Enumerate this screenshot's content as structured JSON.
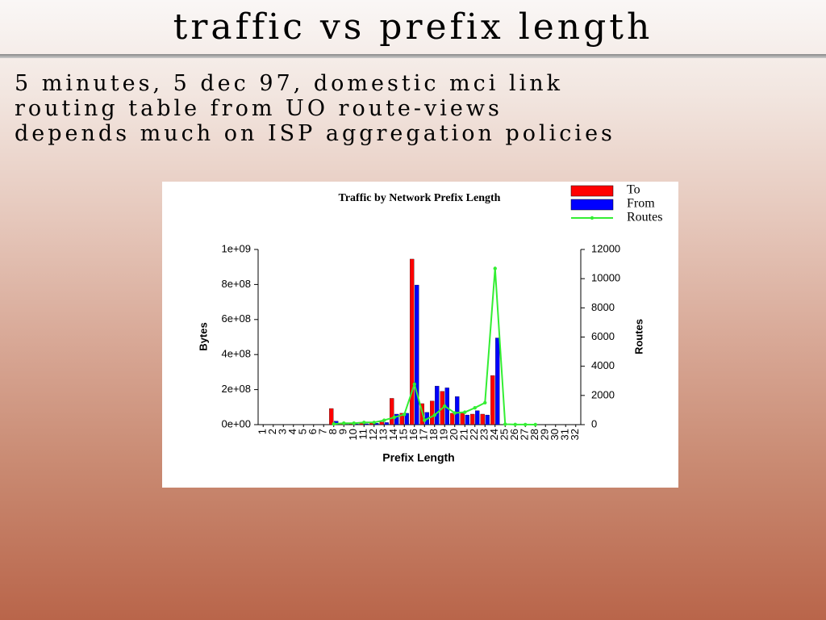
{
  "slide": {
    "title": "traffic vs prefix length",
    "lines": [
      "5 minutes, 5 dec 97, domestic mci link",
      "routing table from UO route-views",
      "depends much on ISP aggregation policies"
    ]
  },
  "chart_data": {
    "type": "bar",
    "title": "Traffic by Network Prefix Length",
    "x_label": "Prefix Length",
    "y_label": "Bytes",
    "y2_label": "Routes",
    "categories": [
      "1",
      "2",
      "3",
      "4",
      "5",
      "6",
      "7",
      "8",
      "9",
      "10",
      "11",
      "12",
      "13",
      "14",
      "15",
      "16",
      "17",
      "18",
      "19",
      "20",
      "21",
      "22",
      "23",
      "24",
      "25",
      "26",
      "27",
      "28",
      "29",
      "30",
      "31",
      "32"
    ],
    "series": [
      {
        "name": "To",
        "color": "#ff0000",
        "type": "bar",
        "values": [
          0,
          0,
          0,
          0,
          0,
          0,
          0,
          92000000,
          3000000,
          4000000,
          10000000,
          10000000,
          15000000,
          150000000,
          65000000,
          945000000,
          120000000,
          135000000,
          190000000,
          65000000,
          70000000,
          60000000,
          60000000,
          280000000,
          0,
          0,
          0,
          0,
          0,
          0,
          0,
          0
        ]
      },
      {
        "name": "From",
        "color": "#0000ff",
        "type": "bar",
        "values": [
          0,
          0,
          0,
          0,
          0,
          0,
          0,
          20000000,
          2000000,
          3000000,
          5000000,
          8000000,
          12000000,
          60000000,
          65000000,
          797000000,
          70000000,
          220000000,
          210000000,
          160000000,
          55000000,
          80000000,
          55000000,
          495000000,
          0,
          0,
          0,
          0,
          0,
          0,
          0,
          0
        ]
      },
      {
        "name": "Routes",
        "color": "#33ee33",
        "type": "line",
        "axis": "y2",
        "values": [
          null,
          null,
          null,
          null,
          null,
          null,
          null,
          50,
          100,
          100,
          150,
          150,
          300,
          500,
          700,
          2770,
          300,
          650,
          1270,
          800,
          850,
          1150,
          1500,
          10700,
          30,
          10,
          5,
          3,
          null,
          null,
          null,
          null
        ]
      }
    ],
    "ylim": [
      0,
      1000000000
    ],
    "yticks": [
      {
        "value": 0,
        "label": "0e+00"
      },
      {
        "value": 200000000,
        "label": "2e+08"
      },
      {
        "value": 400000000,
        "label": "4e+08"
      },
      {
        "value": 600000000,
        "label": "6e+08"
      },
      {
        "value": 800000000,
        "label": "8e+08"
      },
      {
        "value": 1000000000,
        "label": "1e+09"
      }
    ],
    "y2lim": [
      0,
      12000
    ],
    "y2ticks": [
      0,
      2000,
      4000,
      6000,
      8000,
      10000,
      12000
    ],
    "legend": "top-right",
    "grid": false
  }
}
